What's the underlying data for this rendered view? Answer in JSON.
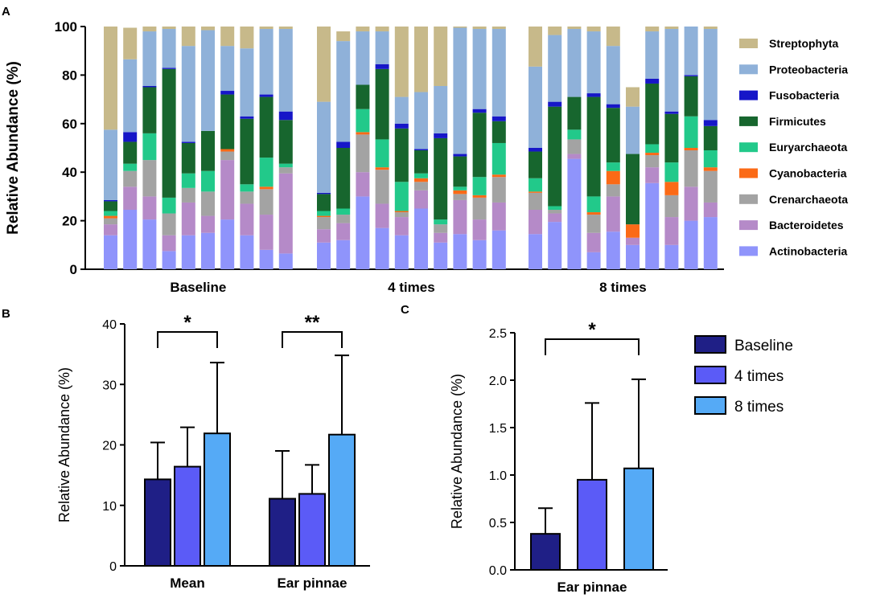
{
  "colors": {
    "Streptophyta": "#c7b98a",
    "Proteobacteria": "#8fb1d9",
    "Fusobacteria": "#1616c8",
    "Firmicutes": "#17662e",
    "Euryarchaeota": "#22c98a",
    "Cyanobacteria": "#fb6a16",
    "Crenarchaeota": "#a3a3a3",
    "Bacteroidetes": "#b58ac8",
    "Actinobacteria": "#8f94fb",
    "Baseline": "#1f1f86",
    "4 times": "#5b5bf7",
    "8 times": "#55aaf6"
  },
  "chart_data": [
    {
      "panel": "A",
      "type": "bar",
      "stacked": true,
      "ylabel": "Relative Abundance (%)",
      "ylim": [
        0,
        100
      ],
      "yticks": [
        0,
        20,
        40,
        60,
        80,
        100
      ],
      "stack_order": [
        "Actinobacteria",
        "Bacteroidetes",
        "Crenarchaeota",
        "Cyanobacteria",
        "Euryarchaeota",
        "Firmicutes",
        "Fusobacteria",
        "Proteobacteria",
        "Streptophyta"
      ],
      "legend": [
        "Streptophyta",
        "Proteobacteria",
        "Fusobacteria",
        "Firmicutes",
        "Euryarchaeota",
        "Cyanobacteria",
        "Crenarchaeota",
        "Bacteroidetes",
        "Actinobacteria"
      ],
      "groups": [
        {
          "label": "Baseline",
          "samples": [
            [
              14,
              4.5,
              2.5,
              1,
              2,
              4,
              0.5,
              29,
              42.5
            ],
            [
              24.5,
              9.5,
              6.5,
              0,
              3,
              9,
              4,
              30,
              13
            ],
            [
              20.5,
              9.5,
              15,
              0,
              11,
              19,
              0.5,
              22.5,
              2
            ],
            [
              7.5,
              6.5,
              9,
              0,
              6.5,
              53,
              0.5,
              16,
              1
            ],
            [
              14,
              13.5,
              6,
              0,
              6,
              12.5,
              0.5,
              39.5,
              8
            ],
            [
              15,
              7,
              10,
              0,
              8.5,
              16.5,
              0,
              41.5,
              1.5
            ],
            [
              20.5,
              24.5,
              3.5,
              1,
              0,
              22.5,
              1.5,
              18.5,
              8
            ],
            [
              14,
              13,
              5,
              0,
              3,
              27,
              1,
              28,
              9
            ],
            [
              8,
              14.5,
              10.5,
              1,
              12,
              25,
              1,
              27,
              1
            ],
            [
              6.5,
              33,
              2.5,
              0,
              1.5,
              18,
              3.5,
              34,
              1
            ]
          ]
        },
        {
          "label": "4 times",
          "samples": [
            [
              11,
              5.5,
              5,
              0.5,
              2,
              7,
              0.5,
              37.5,
              31
            ],
            [
              12,
              7,
              3.5,
              0,
              2.5,
              25,
              2.5,
              41.5,
              4
            ],
            [
              30,
              10,
              15.5,
              1,
              9.5,
              10,
              0,
              22,
              2
            ],
            [
              17,
              10,
              14,
              1,
              11.5,
              29,
              2,
              13.5,
              2
            ],
            [
              14,
              7.5,
              2,
              0.5,
              12,
              22,
              2,
              11,
              29
            ],
            [
              25,
              7.5,
              3.5,
              1.5,
              2,
              9.5,
              0.5,
              23.5,
              27
            ],
            [
              11,
              4,
              3.5,
              0,
              2,
              33.5,
              2,
              19.5,
              24.5
            ],
            [
              14.5,
              14,
              2.5,
              1.5,
              1.5,
              12.5,
              1,
              52,
              0.5
            ],
            [
              12,
              8.5,
              9,
              1,
              7.5,
              26.5,
              1.5,
              33,
              1
            ],
            [
              16,
              11.5,
              10.5,
              1,
              13,
              9,
              2,
              36,
              1
            ]
          ]
        },
        {
          "label": "8 times",
          "samples": [
            [
              14.5,
              10,
              7,
              0.5,
              5.5,
              11,
              1.5,
              33.5,
              16.5
            ],
            [
              19.5,
              3.5,
              1.5,
              0,
              1.5,
              41,
              2,
              27.5,
              3.5
            ],
            [
              45.5,
              2,
              6,
              0,
              4,
              13.5,
              0,
              28,
              1
            ],
            [
              7,
              8,
              7.5,
              1,
              6.5,
              41,
              1.5,
              25.5,
              2
            ],
            [
              15.5,
              14.5,
              5,
              5.5,
              3.5,
              22.5,
              1.5,
              24,
              8
            ],
            [
              10,
              3,
              0,
              5.5,
              0,
              29,
              0,
              19.5,
              8
            ],
            [
              35.5,
              6.5,
              5,
              1,
              3.5,
              25,
              2,
              19.5,
              2
            ],
            [
              10,
              11.5,
              9,
              5.5,
              8,
              20,
              1,
              34,
              1
            ],
            [
              20,
              14,
              15,
              1,
              13,
              16.5,
              0.5,
              20,
              0
            ],
            [
              21.5,
              6,
              13,
              1.5,
              7,
              10,
              2.5,
              37.5,
              1
            ]
          ]
        }
      ]
    },
    {
      "panel": "B",
      "type": "bar",
      "ylabel": "Relative Abundance (%)",
      "ylim": [
        0,
        40
      ],
      "yticks": [
        0,
        10,
        20,
        30,
        40
      ],
      "categories": [
        "Mean",
        "Ear pinnae"
      ],
      "series": [
        {
          "name": "Baseline",
          "values": [
            14.3,
            11.1
          ],
          "errors": [
            6.1,
            7.9
          ]
        },
        {
          "name": "4 times",
          "values": [
            16.4,
            11.9
          ],
          "errors": [
            6.5,
            4.8
          ]
        },
        {
          "name": "8 times",
          "values": [
            21.9,
            21.7
          ],
          "errors": [
            11.7,
            13.1
          ]
        }
      ],
      "annotations": [
        {
          "category": "Mean",
          "from": "Baseline",
          "to": "8 times",
          "text": "*"
        },
        {
          "category": "Ear pinnae",
          "from": "Baseline",
          "to": "8 times",
          "text": "**"
        }
      ]
    },
    {
      "panel": "C",
      "type": "bar",
      "ylabel": "Relative Abundance (%)",
      "ylim": [
        0,
        2.5
      ],
      "yticks": [
        "0.0",
        "0.5",
        "1.0",
        "1.5",
        "2.0",
        "2.5"
      ],
      "categories": [
        "Ear pinnae"
      ],
      "series": [
        {
          "name": "Baseline",
          "values": [
            0.38
          ],
          "errors": [
            0.27
          ]
        },
        {
          "name": "4 times",
          "values": [
            0.95
          ],
          "errors": [
            0.81
          ]
        },
        {
          "name": "8 times",
          "values": [
            1.07
          ],
          "errors": [
            0.94
          ]
        }
      ],
      "annotations": [
        {
          "category": "Ear pinnae",
          "from": "Baseline",
          "to": "8 times",
          "text": "*"
        }
      ],
      "legend": [
        "Baseline",
        "4 times",
        "8 times"
      ]
    }
  ]
}
